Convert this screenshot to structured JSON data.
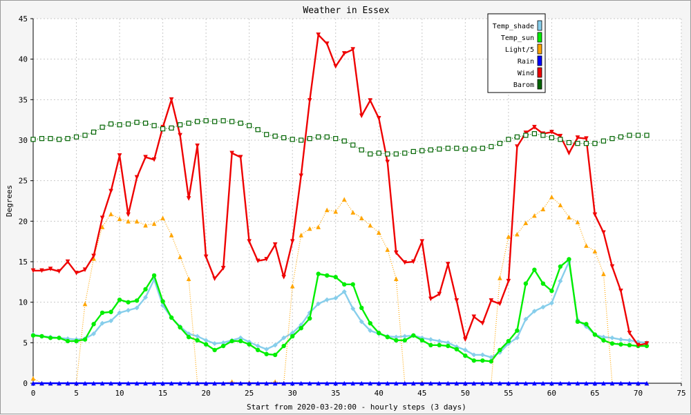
{
  "chart_data": {
    "type": "line",
    "title": "Weather in Essex",
    "xlabel": "Start from 2020-03-20:00 - hourly steps (3 days)",
    "ylabel": "Degrees",
    "xlim": [
      0,
      75
    ],
    "ylim": [
      0,
      45
    ],
    "x_ticks": [
      "0",
      "5",
      "10",
      "15",
      "20",
      "25",
      "30",
      "35",
      "40",
      "45",
      "50",
      "55",
      "60",
      "65",
      "70",
      "75"
    ],
    "y_ticks": [
      "0",
      "5",
      "10",
      "15",
      "20",
      "25",
      "30",
      "35",
      "40",
      "45"
    ],
    "grid": true,
    "legend_position": "top-right",
    "x": [
      0,
      1,
      2,
      3,
      4,
      5,
      6,
      7,
      8,
      9,
      10,
      11,
      12,
      13,
      14,
      15,
      16,
      17,
      18,
      19,
      20,
      21,
      22,
      23,
      24,
      25,
      26,
      27,
      28,
      29,
      30,
      31,
      32,
      33,
      34,
      35,
      36,
      37,
      38,
      39,
      40,
      41,
      42,
      43,
      44,
      45,
      46,
      47,
      48,
      49,
      50,
      51,
      52,
      53,
      54,
      55,
      56,
      57,
      58,
      59,
      60,
      61,
      62,
      63,
      64,
      65,
      66,
      67,
      68,
      69,
      70,
      71
    ],
    "series": [
      {
        "name": "Temp_shade",
        "color": "#87ceeb",
        "marker": "diamond",
        "style": "solid",
        "values": [
          6.0,
          5.8,
          5.7,
          5.6,
          5.5,
          5.4,
          5.5,
          6.1,
          7.4,
          7.7,
          8.7,
          9.0,
          9.3,
          10.6,
          12.8,
          9.6,
          8.1,
          7.0,
          6.1,
          5.8,
          5.3,
          4.9,
          5.0,
          5.3,
          5.6,
          5.1,
          4.6,
          4.2,
          4.7,
          5.6,
          6.2,
          7.2,
          8.7,
          9.8,
          10.3,
          10.5,
          11.3,
          9.2,
          7.6,
          6.5,
          6.1,
          5.8,
          5.7,
          5.8,
          5.9,
          5.6,
          5.4,
          5.2,
          5.0,
          4.5,
          4.1,
          3.5,
          3.5,
          3.2,
          3.8,
          4.9,
          5.6,
          7.9,
          8.9,
          9.4,
          9.9,
          12.6,
          15.0,
          7.8,
          7.0,
          6.0,
          5.7,
          5.6,
          5.4,
          5.3,
          5.1,
          5.0
        ]
      },
      {
        "name": "Temp_sun",
        "color": "#00ee00",
        "marker": "circle",
        "style": "solid",
        "values": [
          5.9,
          5.8,
          5.6,
          5.6,
          5.2,
          5.2,
          5.4,
          7.3,
          8.7,
          8.8,
          10.3,
          10.0,
          10.2,
          11.6,
          13.3,
          10.1,
          8.1,
          6.9,
          5.7,
          5.3,
          4.8,
          4.1,
          4.6,
          5.2,
          5.2,
          4.8,
          4.1,
          3.6,
          3.5,
          4.6,
          5.8,
          6.8,
          8.0,
          13.5,
          13.3,
          13.1,
          12.2,
          12.2,
          9.3,
          7.4,
          6.2,
          5.7,
          5.3,
          5.3,
          5.9,
          5.3,
          4.7,
          4.7,
          4.6,
          4.2,
          3.4,
          2.8,
          2.8,
          2.7,
          4.1,
          5.2,
          6.5,
          12.3,
          14.0,
          12.3,
          11.4,
          14.4,
          15.3,
          7.6,
          7.3,
          6.0,
          5.3,
          4.9,
          4.8,
          4.7,
          4.6,
          4.6
        ]
      },
      {
        "name": "Light/5",
        "color": "#ffa500",
        "marker": "triangle-up",
        "style": "dotted",
        "values": [
          0.6,
          0,
          0,
          0,
          0,
          0,
          9.8,
          15.4,
          19.3,
          20.9,
          20.3,
          20.0,
          20.0,
          19.5,
          19.7,
          20.4,
          18.3,
          15.6,
          12.9,
          0,
          0,
          0,
          0,
          0.2,
          0,
          0.1,
          0,
          0,
          0.2,
          0,
          12.0,
          18.3,
          19.1,
          19.3,
          21.4,
          21.2,
          22.7,
          21.1,
          20.4,
          19.5,
          18.6,
          16.5,
          12.9,
          0,
          0,
          0.1,
          0,
          0,
          0,
          0,
          0,
          0,
          0,
          0,
          13.0,
          18.1,
          18.4,
          19.8,
          20.7,
          21.5,
          23.0,
          22.0,
          20.5,
          19.9,
          17.0,
          16.3,
          13.5,
          0,
          0,
          0,
          0,
          0
        ]
      },
      {
        "name": "Rain",
        "color": "#0000ff",
        "marker": "triangle-up",
        "style": "solid",
        "values": [
          0,
          0,
          0,
          0,
          0,
          0,
          0,
          0,
          0,
          0,
          0,
          0,
          0,
          0,
          0,
          0,
          0,
          0,
          0,
          0,
          0,
          0,
          0,
          0,
          0,
          0,
          0,
          0,
          0,
          0,
          0,
          0,
          0,
          0,
          0,
          0,
          0,
          0,
          0,
          0,
          0,
          0,
          0,
          0,
          0,
          0,
          0,
          0,
          0,
          0,
          0,
          0,
          0,
          0,
          0,
          0,
          0,
          0,
          0,
          0,
          0,
          0,
          0,
          0,
          0,
          0,
          0,
          0,
          0,
          0,
          0,
          0
        ]
      },
      {
        "name": "Wind",
        "color": "#ee0000",
        "marker": "triangle-down",
        "style": "solid",
        "values": [
          13.9,
          13.9,
          14.1,
          13.8,
          15.0,
          13.6,
          14.0,
          15.7,
          20.4,
          23.7,
          28.1,
          20.8,
          25.4,
          27.9,
          27.6,
          31.6,
          35.0,
          30.6,
          22.8,
          29.3,
          15.6,
          12.9,
          14.2,
          28.4,
          27.9,
          17.5,
          15.1,
          15.3,
          17.1,
          13.1,
          17.5,
          25.6,
          34.9,
          43.0,
          41.9,
          39.1,
          40.7,
          41.2,
          33.0,
          34.9,
          32.7,
          27.3,
          16.1,
          14.9,
          15.0,
          17.5,
          10.4,
          11.0,
          14.7,
          10.2,
          5.4,
          8.2,
          7.4,
          10.2,
          9.8,
          12.6,
          29.2,
          30.9,
          31.6,
          30.8,
          31.0,
          30.5,
          28.4,
          30.3,
          30.2,
          20.8,
          18.6,
          14.4,
          11.4,
          6.2,
          4.7,
          4.9
        ]
      },
      {
        "name": "Barom",
        "color": "#006400",
        "marker": "square-open",
        "style": "dotted",
        "values": [
          30.1,
          30.2,
          30.2,
          30.1,
          30.2,
          30.4,
          30.6,
          31.0,
          31.6,
          32.0,
          31.9,
          32.0,
          32.2,
          32.1,
          31.8,
          31.4,
          31.5,
          31.9,
          32.1,
          32.3,
          32.4,
          32.3,
          32.4,
          32.3,
          32.1,
          31.8,
          31.3,
          30.7,
          30.5,
          30.3,
          30.1,
          30.0,
          30.2,
          30.4,
          30.4,
          30.2,
          29.9,
          29.4,
          28.8,
          28.3,
          28.4,
          28.3,
          28.3,
          28.4,
          28.6,
          28.7,
          28.8,
          28.9,
          29.0,
          29.0,
          28.9,
          28.9,
          29.0,
          29.2,
          29.6,
          30.1,
          30.4,
          30.6,
          30.8,
          30.6,
          30.3,
          30.1,
          29.7,
          29.6,
          29.6,
          29.6,
          29.9,
          30.2,
          30.4,
          30.6,
          30.6,
          30.6
        ]
      }
    ]
  }
}
